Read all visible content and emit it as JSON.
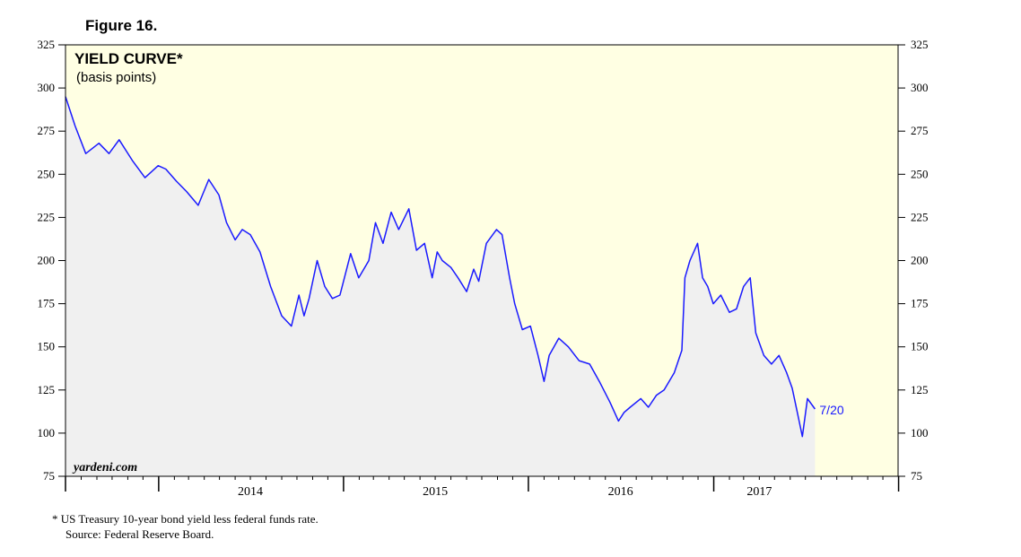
{
  "figure_label": "Figure 16.",
  "chart_data": {
    "type": "area",
    "title": "YIELD CURVE*",
    "subtitle": "(basis points)",
    "ylim": [
      75,
      325
    ],
    "y_ticks": [
      75,
      100,
      125,
      150,
      175,
      200,
      225,
      250,
      275,
      300,
      325
    ],
    "y_tick_labels": [
      "75",
      "100",
      "125",
      "150",
      "175",
      "200",
      "225",
      "250",
      "275",
      "300",
      "325"
    ],
    "x_range": [
      "2013-07-01",
      "2017-12-31"
    ],
    "x_major_ticks": [
      "2014-01-01",
      "2015-01-01",
      "2016-01-01",
      "2017-01-01",
      "2018-01-01"
    ],
    "x_labels": [
      "2014",
      "2015",
      "2016",
      "2017"
    ],
    "x_label_dates": [
      "2014-07-01",
      "2015-07-01",
      "2016-07-01",
      "2017-04-01"
    ],
    "grid": false,
    "series": [
      {
        "color": "#1a1aff",
        "fill": "#f0f0f0",
        "x": [
          "2013-07-01",
          "2013-07-20",
          "2013-08-10",
          "2013-09-05",
          "2013-09-25",
          "2013-10-15",
          "2013-11-10",
          "2013-12-05",
          "2013-12-31",
          "2014-01-15",
          "2014-02-05",
          "2014-02-25",
          "2014-03-20",
          "2014-04-10",
          "2014-04-30",
          "2014-05-15",
          "2014-06-01",
          "2014-06-15",
          "2014-07-01",
          "2014-07-20",
          "2014-08-10",
          "2014-09-01",
          "2014-09-20",
          "2014-10-05",
          "2014-10-15",
          "2014-10-25",
          "2014-11-10",
          "2014-11-25",
          "2014-12-10",
          "2014-12-25",
          "2015-01-15",
          "2015-01-31",
          "2015-02-20",
          "2015-03-05",
          "2015-03-20",
          "2015-04-05",
          "2015-04-20",
          "2015-05-10",
          "2015-05-25",
          "2015-06-10",
          "2015-06-25",
          "2015-07-05",
          "2015-07-15",
          "2015-08-01",
          "2015-08-15",
          "2015-09-01",
          "2015-09-15",
          "2015-09-25",
          "2015-10-10",
          "2015-10-30",
          "2015-11-10",
          "2015-11-25",
          "2015-12-05",
          "2015-12-20",
          "2016-01-05",
          "2016-01-20",
          "2016-02-01",
          "2016-02-11",
          "2016-03-01",
          "2016-03-20",
          "2016-04-10",
          "2016-05-01",
          "2016-05-20",
          "2016-06-10",
          "2016-06-27",
          "2016-07-08",
          "2016-07-20",
          "2016-08-10",
          "2016-08-25",
          "2016-09-10",
          "2016-09-25",
          "2016-10-15",
          "2016-10-30",
          "2016-11-05",
          "2016-11-15",
          "2016-11-30",
          "2016-12-10",
          "2016-12-20",
          "2016-12-31",
          "2017-01-15",
          "2017-02-01",
          "2017-02-15",
          "2017-03-01",
          "2017-03-14",
          "2017-03-25",
          "2017-04-10",
          "2017-04-25",
          "2017-05-10",
          "2017-05-25",
          "2017-06-05",
          "2017-06-15",
          "2017-06-25",
          "2017-07-05",
          "2017-07-20"
        ],
        "values": [
          295,
          278,
          262,
          268,
          262,
          270,
          258,
          248,
          255,
          253,
          246,
          240,
          232,
          247,
          238,
          222,
          212,
          218,
          215,
          205,
          185,
          168,
          162,
          180,
          168,
          178,
          200,
          185,
          178,
          180,
          204,
          190,
          200,
          222,
          210,
          228,
          218,
          230,
          206,
          210,
          190,
          205,
          200,
          196,
          190,
          182,
          195,
          188,
          210,
          218,
          215,
          190,
          175,
          160,
          162,
          145,
          130,
          145,
          155,
          150,
          142,
          140,
          130,
          118,
          107,
          112,
          115,
          120,
          115,
          122,
          125,
          135,
          148,
          190,
          200,
          210,
          190,
          185,
          175,
          180,
          170,
          172,
          185,
          190,
          158,
          145,
          140,
          145,
          135,
          126,
          112,
          98,
          120,
          114
        ]
      }
    ],
    "last_value_label": "7/20"
  },
  "watermark": "yardeni.com",
  "footnote_line1": "*  US Treasury 10-year bond yield less federal funds rate.",
  "footnote_line2": "Source: Federal Reserve Board.",
  "colors": {
    "plot_bg": "#ffffe3",
    "area_fill": "#f0f0f0",
    "line": "#1a1aff"
  }
}
